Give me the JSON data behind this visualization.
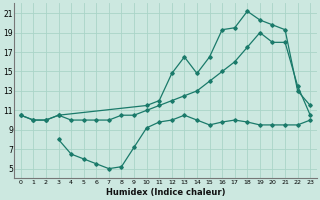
{
  "xlabel": "Humidex (Indice chaleur)",
  "bg_color": "#cce8e0",
  "grid_color": "#aad4c8",
  "line_color": "#1a7a6a",
  "xlim": [
    -0.5,
    23.5
  ],
  "ylim": [
    4.0,
    22.0
  ],
  "xticks": [
    0,
    1,
    2,
    3,
    4,
    5,
    6,
    7,
    8,
    9,
    10,
    11,
    12,
    13,
    14,
    15,
    16,
    17,
    18,
    19,
    20,
    21,
    22,
    23
  ],
  "yticks": [
    5,
    7,
    9,
    11,
    13,
    15,
    17,
    19,
    21
  ],
  "line1_x": [
    0,
    1,
    2,
    3,
    10,
    11,
    12,
    13,
    14,
    15,
    16,
    17,
    18,
    19,
    20,
    21,
    22,
    23
  ],
  "line1_y": [
    10.5,
    10.0,
    10.0,
    10.5,
    11.5,
    12.0,
    14.8,
    16.5,
    14.8,
    16.5,
    19.3,
    19.5,
    21.2,
    20.3,
    19.8,
    19.3,
    13.0,
    11.5
  ],
  "line2_x": [
    0,
    1,
    2,
    3,
    4,
    5,
    6,
    7,
    8,
    9,
    10,
    11,
    12,
    13,
    14,
    15,
    16,
    17,
    18,
    19,
    20,
    21,
    22,
    23
  ],
  "line2_y": [
    10.5,
    10.0,
    10.0,
    10.5,
    10.0,
    10.0,
    10.0,
    10.0,
    10.5,
    10.5,
    11.0,
    11.5,
    12.0,
    12.5,
    13.0,
    14.0,
    15.0,
    16.0,
    17.5,
    19.0,
    18.0,
    18.0,
    13.5,
    10.5
  ],
  "line3_x": [
    3,
    4,
    5,
    6,
    7,
    8,
    9,
    10,
    11,
    12,
    13,
    14,
    15,
    16,
    17,
    18,
    19,
    20,
    21,
    22,
    23
  ],
  "line3_y": [
    8.0,
    6.5,
    6.0,
    5.5,
    5.0,
    5.2,
    7.2,
    9.2,
    9.8,
    10.0,
    10.5,
    10.0,
    9.5,
    9.8,
    10.0,
    9.8,
    9.5,
    9.5,
    9.5,
    9.5,
    10.0
  ]
}
